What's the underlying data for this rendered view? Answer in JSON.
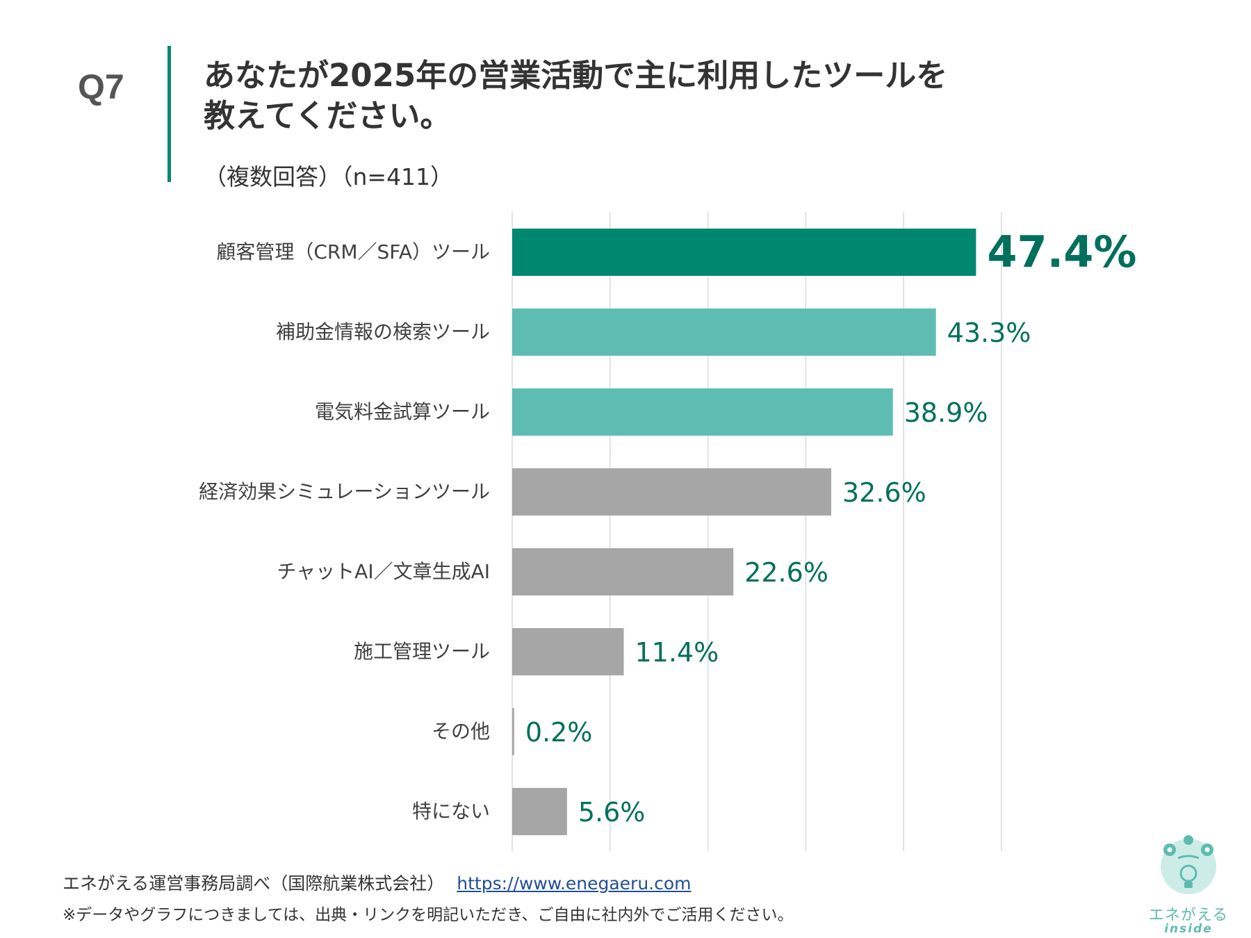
{
  "header": {
    "question_no": "Q7",
    "title_line1": "あなたが2025年の営業活動で主に利用したツールを",
    "title_line2": "教えてください。",
    "subtitle": "（複数回答）（n=411）"
  },
  "chart_data": {
    "type": "bar",
    "orientation": "horizontal",
    "categories": [
      "顧客管理（CRM／SFA）ツール",
      "補助金情報の検索ツール",
      "電気料金試算ツール",
      "経済効果シミュレーションツール",
      "チャットAI／文章生成AI",
      "施工管理ツール",
      "その他",
      "特にない"
    ],
    "values": [
      47.4,
      43.3,
      38.9,
      32.6,
      22.6,
      11.4,
      0.2,
      5.6
    ],
    "value_labels": [
      "47.4%",
      "43.3%",
      "38.9%",
      "32.6%",
      "22.6%",
      "11.4%",
      "0.2%",
      "5.6%"
    ],
    "bar_colors": [
      "#00876f",
      "#5ebdb3",
      "#5ebdb3",
      "#a6a6a6",
      "#a6a6a6",
      "#a6a6a6",
      "#a6a6a6",
      "#a6a6a6"
    ],
    "label_color": "#00705c",
    "xlim": [
      0,
      50
    ],
    "grid": true,
    "legend": "none"
  },
  "footer": {
    "source": "エネがえる運営事務局調べ（国際航業株式会社）",
    "url": "https://www.enegaeru.com",
    "note": "※データやグラフにつきましては、出典・リンクを明記いただき、ご自由に社内外でご活用ください。"
  },
  "logo": {
    "main": "エネがえる",
    "sub": "inside"
  }
}
